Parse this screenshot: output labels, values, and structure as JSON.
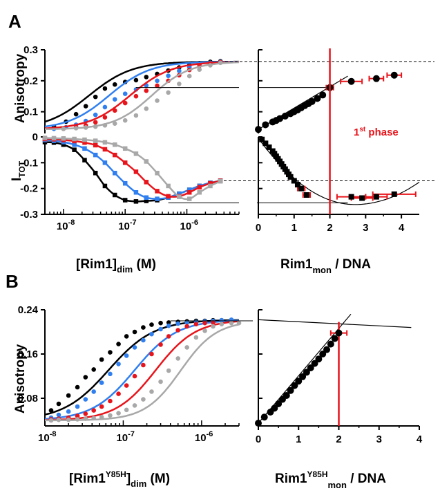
{
  "panels": {
    "A": "A",
    "B": "B"
  },
  "colors": {
    "black": "#000000",
    "blue": "#2f7ff0",
    "red": "#e8141b",
    "gray": "#a8a8a8"
  },
  "labels": {
    "a_aniso_y": "Anisotropy",
    "a_itot_main": "I",
    "a_itot_sub": "TOT",
    "a_left_x_main": "[Rim1]",
    "a_left_x_sub": "dim",
    "a_left_x_unit": " (M)",
    "a_right_x_main": "Rim1",
    "a_right_x_sub": "mon",
    "a_right_x_tail": " / DNA",
    "phase_main": "1",
    "phase_sup": "st",
    "phase_tail": " phase",
    "b_aniso_y": "Anisotropy",
    "b_left_x_main": "[Rim1",
    "b_left_x_sup": "Y85H",
    "b_left_x_close": "]",
    "b_left_x_sub": "dim",
    "b_left_x_unit": " (M)",
    "b_right_x_main": "Rim1",
    "b_right_x_sup": "Y85H",
    "b_right_x_sub": "mon",
    "b_right_x_tail": " / DNA"
  },
  "chart_data": [
    {
      "id": "A_left_anisotropy",
      "type": "scatter",
      "x_scale": "log",
      "xlim": [
        5e-09,
        7e-06
      ],
      "ylim": [
        0.03,
        0.3
      ],
      "yticks": [
        0.1,
        0.2,
        0.3
      ],
      "ytick_labels": [
        "0.1",
        "0.2",
        "0.3"
      ],
      "series": [
        {
          "color": "black",
          "midpoint": 2.6e-08,
          "hill": 1.25,
          "top": 0.262,
          "base": 0.043,
          "x": [
            7e-09,
            1.1e-08,
            1.6e-08,
            2.3e-08,
            3.3e-08,
            4.7e-08,
            6.8e-08,
            1e-07,
            1.5e-07,
            2.2e-07,
            3.3e-07,
            5e-07,
            7.5e-07,
            1.1e-06,
            1.6e-06,
            2.4e-06,
            3.5e-06
          ],
          "y": [
            0.052,
            0.068,
            0.092,
            0.118,
            0.148,
            0.175,
            0.188,
            0.196,
            0.202,
            0.212,
            0.222,
            0.233,
            0.243,
            0.251,
            0.257,
            0.261,
            0.263
          ]
        },
        {
          "color": "blue",
          "midpoint": 5.5e-08,
          "hill": 1.3,
          "top": 0.262,
          "base": 0.043,
          "x": [
            7e-09,
            1.1e-08,
            1.6e-08,
            2.3e-08,
            3.3e-08,
            4.7e-08,
            6.8e-08,
            1e-07,
            1.5e-07,
            2.2e-07,
            3.3e-07,
            5e-07,
            7.5e-07,
            1.1e-06,
            1.6e-06,
            2.4e-06,
            3.5e-06
          ],
          "y": [
            0.045,
            0.05,
            0.058,
            0.07,
            0.09,
            0.115,
            0.14,
            0.158,
            0.172,
            0.185,
            0.2,
            0.216,
            0.232,
            0.244,
            0.252,
            0.258,
            0.261
          ]
        },
        {
          "color": "red",
          "midpoint": 1.2e-07,
          "hill": 1.3,
          "top": 0.262,
          "base": 0.043,
          "x": [
            1e-08,
            1.6e-08,
            2.3e-08,
            3.3e-08,
            4.7e-08,
            6.8e-08,
            1e-07,
            1.5e-07,
            2.2e-07,
            3.3e-07,
            5e-07,
            7.5e-07,
            1.1e-06,
            1.6e-06,
            2.4e-06,
            3.5e-06
          ],
          "y": [
            0.045,
            0.05,
            0.056,
            0.066,
            0.082,
            0.104,
            0.128,
            0.15,
            0.168,
            0.184,
            0.2,
            0.218,
            0.235,
            0.248,
            0.256,
            0.26
          ]
        },
        {
          "color": "gray",
          "midpoint": 2.7e-07,
          "hill": 1.4,
          "top": 0.262,
          "base": 0.043,
          "x": [
            1e-08,
            1.6e-08,
            2.3e-08,
            3.3e-08,
            4.7e-08,
            6.8e-08,
            1e-07,
            1.5e-07,
            2.2e-07,
            3.3e-07,
            5e-07,
            7.5e-07,
            1.1e-06,
            1.6e-06,
            2.4e-06,
            3.5e-06
          ],
          "y": [
            0.045,
            0.047,
            0.049,
            0.052,
            0.056,
            0.062,
            0.072,
            0.088,
            0.11,
            0.136,
            0.162,
            0.19,
            0.215,
            0.236,
            0.25,
            0.258
          ]
        }
      ],
      "guide_line": {
        "x_from": 1.5e-07,
        "y": 0.178
      }
    },
    {
      "id": "A_left_itot",
      "type": "scatter",
      "x_scale": "log",
      "xlim": [
        5e-09,
        7e-06
      ],
      "ylim": [
        -0.3,
        0.0
      ],
      "yticks": [
        0,
        -0.1,
        -0.2,
        -0.3
      ],
      "ytick_labels": [
        "0",
        "-0.1",
        "-0.2",
        "-0.3"
      ],
      "xticks": [
        1e-08,
        1e-07,
        1e-06
      ],
      "xtick_exponents": [
        "-8",
        "-7",
        "-6"
      ],
      "series": [
        {
          "color": "black",
          "x": [
            5e-09,
            7e-09,
            1e-08,
            1.5e-08,
            2.2e-08,
            3.3e-08,
            4.7e-08,
            6.8e-08,
            1e-07,
            1.5e-07,
            2.2e-07,
            3.3e-07,
            5e-07,
            7.5e-07,
            1.1e-06,
            1.6e-06,
            2.4e-06,
            3.5e-06
          ],
          "y": [
            -0.02,
            -0.022,
            -0.03,
            -0.05,
            -0.09,
            -0.14,
            -0.19,
            -0.225,
            -0.245,
            -0.25,
            -0.248,
            -0.245,
            -0.235,
            -0.22,
            -0.205,
            -0.19,
            -0.178,
            -0.17
          ]
        },
        {
          "color": "blue",
          "x": [
            5e-09,
            7e-09,
            1e-08,
            1.5e-08,
            2.2e-08,
            3.3e-08,
            4.7e-08,
            6.8e-08,
            1e-07,
            1.5e-07,
            2.2e-07,
            3.3e-07,
            5e-07,
            7.5e-07,
            1.1e-06,
            1.6e-06,
            2.4e-06,
            3.5e-06
          ],
          "y": [
            -0.012,
            -0.015,
            -0.02,
            -0.03,
            -0.045,
            -0.07,
            -0.1,
            -0.14,
            -0.18,
            -0.215,
            -0.235,
            -0.24,
            -0.235,
            -0.22,
            -0.205,
            -0.19,
            -0.178,
            -0.17
          ]
        },
        {
          "color": "red",
          "x": [
            5e-09,
            7e-09,
            1e-08,
            1.5e-08,
            2.2e-08,
            3.3e-08,
            4.7e-08,
            6.8e-08,
            1e-07,
            1.5e-07,
            2.2e-07,
            3.3e-07,
            5e-07,
            7.5e-07,
            1.1e-06,
            1.6e-06,
            2.4e-06,
            3.5e-06
          ],
          "y": [
            -0.008,
            -0.009,
            -0.012,
            -0.016,
            -0.022,
            -0.032,
            -0.048,
            -0.07,
            -0.1,
            -0.135,
            -0.175,
            -0.21,
            -0.23,
            -0.23,
            -0.215,
            -0.195,
            -0.18,
            -0.17
          ]
        },
        {
          "color": "gray",
          "x": [
            5e-09,
            7e-09,
            1e-08,
            1.5e-08,
            2.2e-08,
            3.3e-08,
            4.7e-08,
            6.8e-08,
            1e-07,
            1.5e-07,
            2.2e-07,
            3.3e-07,
            5e-07,
            7.5e-07,
            1.1e-06,
            1.6e-06,
            2.4e-06,
            3.5e-06
          ],
          "y": [
            -0.004,
            -0.005,
            -0.006,
            -0.008,
            -0.011,
            -0.015,
            -0.021,
            -0.03,
            -0.045,
            -0.065,
            -0.095,
            -0.14,
            -0.19,
            -0.232,
            -0.24,
            -0.215,
            -0.19,
            -0.172
          ]
        }
      ],
      "guide_line": {
        "x_from": 5e-07,
        "y": -0.255
      }
    },
    {
      "id": "A_right_anisotropy",
      "type": "scatter",
      "xlim": [
        0,
        4.5
      ],
      "ylim": [
        0.03,
        0.3
      ],
      "x": [
        0,
        0.2,
        0.4,
        0.5,
        0.6,
        0.75,
        0.9,
        1.0,
        1.1,
        1.2,
        1.3,
        1.4,
        1.5,
        1.65,
        1.8,
        2.0,
        2.6,
        3.3,
        3.8
      ],
      "y": [
        0.043,
        0.058,
        0.067,
        0.072,
        0.078,
        0.086,
        0.094,
        0.1,
        0.106,
        0.113,
        0.12,
        0.126,
        0.133,
        0.143,
        0.154,
        0.178,
        0.198,
        0.207,
        0.218
      ],
      "xerr": [
        0,
        0,
        0,
        0,
        0,
        0,
        0,
        0,
        0,
        0,
        0,
        0,
        0,
        0,
        0,
        0.1,
        0.3,
        0.2,
        0.2
      ],
      "fit_line": {
        "x": [
          0,
          2.5
        ],
        "y": [
          0.043,
          0.215
        ]
      },
      "ref_line_y": 0.262,
      "phase_x": 2.0
    },
    {
      "id": "A_right_itot",
      "type": "scatter",
      "xlim": [
        0,
        4.5
      ],
      "ylim": [
        -0.3,
        0.0
      ],
      "xticks": [
        0,
        1,
        2,
        3,
        4
      ],
      "xtick_labels": [
        "0",
        "1",
        "2",
        "3",
        "4"
      ],
      "x": [
        0.1,
        0.2,
        0.3,
        0.4,
        0.45,
        0.5,
        0.55,
        0.6,
        0.65,
        0.7,
        0.75,
        0.8,
        0.85,
        0.9,
        1.0,
        1.1,
        1.2,
        1.35,
        2.6,
        2.9,
        3.3,
        3.8
      ],
      "y": [
        -0.01,
        -0.025,
        -0.04,
        -0.055,
        -0.065,
        -0.075,
        -0.085,
        -0.095,
        -0.105,
        -0.115,
        -0.125,
        -0.135,
        -0.145,
        -0.155,
        -0.17,
        -0.185,
        -0.2,
        -0.225,
        -0.232,
        -0.237,
        -0.232,
        -0.222
      ],
      "xerr": [
        0,
        0,
        0,
        0.05,
        0,
        0.05,
        0,
        0.05,
        0,
        0.05,
        0.05,
        0.05,
        0,
        0.05,
        0.05,
        0.05,
        0.1,
        0.1,
        0.4,
        0.3,
        0.3,
        0.6
      ],
      "fit_curve": {
        "center": 2.7,
        "min": -0.262,
        "start": -0.005,
        "end_x": 4.5,
        "end_y": -0.175
      },
      "ref_line_y": -0.17,
      "guide_line": {
        "x_to": 2.5,
        "y": -0.255
      }
    },
    {
      "id": "B_left",
      "type": "scatter",
      "x_scale": "log",
      "xlim": [
        1e-08,
        3e-06
      ],
      "ylim": [
        0.03,
        0.24
      ],
      "yticks": [
        0.08,
        0.16,
        0.24
      ],
      "ytick_labels": [
        "0.08",
        "0.16",
        "0.24"
      ],
      "xticks": [
        1e-08,
        1e-07,
        1e-06
      ],
      "xtick_exponents": [
        "-8",
        "-7",
        "-6"
      ],
      "series": [
        {
          "color": "black",
          "midpoint": 6.5e-08,
          "hill": 1.5,
          "top": 0.222,
          "base": 0.04,
          "x": [
            1.2e-08,
            1.5e-08,
            2e-08,
            2.6e-08,
            3.3e-08,
            4.2e-08,
            5.3e-08,
            6.8e-08,
            8.7e-08,
            1.1e-07,
            1.4e-07,
            1.8e-07,
            2.3e-07,
            3e-07,
            3.8e-07,
            5e-07,
            6.5e-07,
            8.5e-07,
            1.1e-06,
            1.4e-06,
            1.8e-06,
            2.4e-06
          ],
          "y": [
            0.058,
            0.07,
            0.085,
            0.1,
            0.118,
            0.132,
            0.15,
            0.163,
            0.178,
            0.192,
            0.2,
            0.208,
            0.213,
            0.216,
            0.217,
            0.218,
            0.219,
            0.22,
            0.22,
            0.221,
            0.221,
            0.221
          ]
        },
        {
          "color": "blue",
          "midpoint": 1.4e-07,
          "hill": 1.6,
          "top": 0.222,
          "base": 0.04,
          "x": [
            1.2e-08,
            1.5e-08,
            2e-08,
            2.6e-08,
            3.3e-08,
            4.2e-08,
            5.3e-08,
            6.8e-08,
            8.7e-08,
            1.1e-07,
            1.4e-07,
            1.8e-07,
            2.3e-07,
            3e-07,
            3.8e-07,
            5e-07,
            6.5e-07,
            8.5e-07,
            1.1e-06,
            1.4e-06,
            1.8e-06,
            2.4e-06
          ],
          "y": [
            0.045,
            0.05,
            0.056,
            0.065,
            0.078,
            0.092,
            0.108,
            0.124,
            0.142,
            0.157,
            0.172,
            0.185,
            0.196,
            0.205,
            0.211,
            0.215,
            0.217,
            0.218,
            0.219,
            0.22,
            0.221,
            0.222
          ]
        },
        {
          "color": "red",
          "midpoint": 2.6e-07,
          "hill": 1.7,
          "top": 0.222,
          "base": 0.04,
          "x": [
            1.2e-08,
            1.5e-08,
            2e-08,
            2.6e-08,
            3.3e-08,
            4.2e-08,
            5.3e-08,
            6.8e-08,
            8.7e-08,
            1.1e-07,
            1.4e-07,
            1.8e-07,
            2.3e-07,
            3e-07,
            3.8e-07,
            5e-07,
            6.5e-07,
            8.5e-07,
            1.1e-06,
            1.4e-06
          ],
          "y": [
            0.042,
            0.043,
            0.045,
            0.048,
            0.052,
            0.058,
            0.065,
            0.075,
            0.088,
            0.103,
            0.12,
            0.14,
            0.16,
            0.177,
            0.192,
            0.203,
            0.21,
            0.214,
            0.216,
            0.217
          ]
        },
        {
          "color": "gray",
          "midpoint": 5.4e-07,
          "hill": 1.9,
          "top": 0.22,
          "base": 0.04,
          "x": [
            1.2e-08,
            1.5e-08,
            2e-08,
            2.6e-08,
            3.3e-08,
            4.2e-08,
            5.3e-08,
            6.8e-08,
            8.7e-08,
            1.1e-07,
            1.4e-07,
            1.8e-07,
            2.3e-07,
            3e-07,
            3.8e-07,
            5e-07,
            6.5e-07,
            8.5e-07,
            1.1e-06,
            1.4e-06,
            1.8e-06,
            2.4e-06,
            3e-06
          ],
          "y": [
            0.04,
            0.041,
            0.041,
            0.042,
            0.043,
            0.044,
            0.046,
            0.049,
            0.053,
            0.059,
            0.067,
            0.078,
            0.092,
            0.11,
            0.13,
            0.152,
            0.172,
            0.19,
            0.202,
            0.21,
            0.214,
            0.216,
            0.216
          ]
        }
      ],
      "guide_line": {
        "x_from": 4e-07,
        "y": 0.22
      }
    },
    {
      "id": "B_right",
      "type": "scatter",
      "xlim": [
        0,
        4
      ],
      "ylim": [
        0.03,
        0.24
      ],
      "xticks": [
        0,
        1,
        2,
        3,
        4
      ],
      "xtick_labels": [
        "0",
        "1",
        "2",
        "3",
        "4"
      ],
      "x": [
        0,
        0.15,
        0.3,
        0.4,
        0.5,
        0.6,
        0.7,
        0.8,
        0.9,
        1.0,
        1.1,
        1.2,
        1.3,
        1.4,
        1.5,
        1.6,
        1.7,
        1.8,
        1.9,
        2.0
      ],
      "y": [
        0.035,
        0.046,
        0.055,
        0.062,
        0.07,
        0.078,
        0.085,
        0.094,
        0.103,
        0.111,
        0.119,
        0.127,
        0.135,
        0.143,
        0.151,
        0.16,
        0.168,
        0.178,
        0.188,
        0.198
      ],
      "xerr": [
        0,
        0,
        0,
        0,
        0,
        0,
        0,
        0,
        0,
        0,
        0,
        0,
        0,
        0,
        0,
        0,
        0,
        0,
        0,
        0.2
      ],
      "fit_line": {
        "x": [
          0,
          2.3
        ],
        "y": [
          0.035,
          0.232
        ]
      },
      "ref_line": {
        "x": [
          0,
          3.8
        ],
        "y": [
          0.222,
          0.208
        ]
      },
      "phase_x": 2.0
    }
  ]
}
